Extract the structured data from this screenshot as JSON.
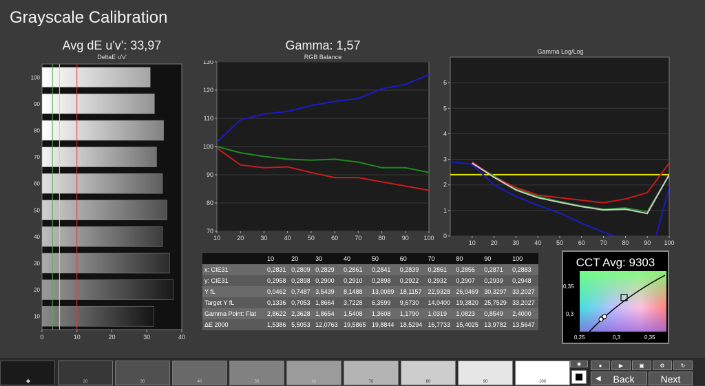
{
  "page_title": "Grayscale Calibration",
  "delta_chart": {
    "heading": "Avg dE u'v': 33,97",
    "subtitle": "DeltaE u'v'",
    "chart_data": {
      "type": "bar",
      "orientation": "horizontal",
      "categories": [
        "10",
        "20",
        "30",
        "40",
        "50",
        "60",
        "70",
        "80",
        "90",
        "100"
      ],
      "values": [
        32.0,
        37.5,
        36.5,
        34.5,
        35.8,
        34.5,
        32.8,
        34.8,
        32.2,
        31.0
      ],
      "xlim": [
        0,
        40
      ],
      "xticks": [
        "0",
        "10",
        "20",
        "30",
        "40"
      ],
      "reference_lines": [
        {
          "x": 3,
          "color": "#4caf50"
        },
        {
          "x": 5,
          "color": "#e6e600"
        },
        {
          "x": 10,
          "color": "#e53935"
        }
      ]
    }
  },
  "rgb_chart": {
    "heading": "Gamma: 1,57",
    "subtitle": "RGB Balance",
    "chart_data": {
      "type": "line",
      "x": [
        10,
        20,
        30,
        40,
        50,
        60,
        70,
        80,
        90,
        100
      ],
      "ylim": [
        70,
        130
      ],
      "yticks": [
        "70",
        "80",
        "90",
        "100",
        "110",
        "120",
        "130"
      ],
      "xticks": [
        "10",
        "20",
        "30",
        "40",
        "50",
        "60",
        "70",
        "80",
        "90",
        "100"
      ],
      "series": [
        {
          "color": "#1a1acc",
          "values": [
            101.5,
            109.5,
            111.5,
            112.5,
            114.5,
            116,
            117,
            120.5,
            122,
            125.5
          ]
        },
        {
          "color": "#1f8a1f",
          "values": [
            100,
            97.8,
            96.5,
            95.5,
            95.2,
            95.5,
            94.5,
            92.5,
            92.5,
            90.8
          ]
        },
        {
          "color": "#cc1a1a",
          "values": [
            99.5,
            93.5,
            92.5,
            92.8,
            90.8,
            89,
            89,
            87.5,
            86,
            84.5
          ]
        }
      ]
    }
  },
  "gamma_chart": {
    "subtitle": "Gamma Log/Log",
    "chart_data": {
      "type": "line",
      "x": [
        0,
        10,
        20,
        30,
        40,
        50,
        60,
        70,
        80,
        90,
        100
      ],
      "xlim": [
        0,
        100
      ],
      "ylim": [
        0,
        7
      ],
      "yticks": [
        "0",
        "1",
        "2",
        "3",
        "4",
        "5",
        "6"
      ],
      "xticks": [
        "10",
        "20",
        "30",
        "40",
        "50",
        "60",
        "70",
        "80",
        "90",
        "100"
      ],
      "series": [
        {
          "color": "#e6e600",
          "x": [
            0,
            100
          ],
          "values": [
            2.4,
            2.4
          ]
        },
        {
          "color": "#1a1acc",
          "x": [
            0,
            10,
            20,
            30,
            40,
            50,
            60,
            70,
            75
          ],
          "values": [
            2.9,
            2.8,
            2.0,
            1.55,
            1.2,
            0.9,
            0.5,
            0.15,
            0
          ]
        },
        {
          "color": "#1a1acc",
          "x": [
            94,
            100
          ],
          "values": [
            0,
            1.9
          ]
        },
        {
          "color": "#1f8a1f",
          "x": [
            10,
            20,
            30,
            40,
            50,
            60,
            70,
            80,
            90,
            100
          ],
          "values": [
            2.85,
            2.35,
            1.85,
            1.55,
            1.35,
            1.18,
            1.05,
            1.1,
            0.95,
            2.4
          ]
        },
        {
          "color": "#cc1a1a",
          "x": [
            10,
            20,
            30,
            40,
            50,
            60,
            70,
            80,
            90,
            100
          ],
          "values": [
            2.9,
            2.3,
            1.9,
            1.6,
            1.5,
            1.4,
            1.3,
            1.45,
            1.7,
            2.85
          ]
        },
        {
          "color": "#cccccc",
          "x": [
            10,
            20,
            30,
            40,
            50,
            60,
            70,
            80,
            90,
            100
          ],
          "values": [
            2.85,
            2.3,
            1.8,
            1.5,
            1.32,
            1.15,
            1.02,
            1.05,
            0.88,
            2.4
          ]
        }
      ]
    }
  },
  "table": {
    "header": [
      "",
      "10",
      "20",
      "30",
      "40",
      "50",
      "60",
      "70",
      "80",
      "90",
      "100"
    ],
    "rows": [
      [
        "x: CIE31",
        "0,2831",
        "0,2809",
        "0,2829",
        "0,2861",
        "0,2841",
        "0,2839",
        "0,2861",
        "0,2856",
        "0,2871",
        "0,2883"
      ],
      [
        "y: CIE31",
        "0,2958",
        "0,2898",
        "0,2900",
        "0,2910",
        "0,2898",
        "0,2922",
        "0,2932",
        "0,2907",
        "0,2939",
        "0,2948"
      ],
      [
        "Y fL",
        "0,0462",
        "0,7487",
        "3,5439",
        "8,1488",
        "13,0089",
        "18,1157",
        "22,9328",
        "26,0469",
        "30,3297",
        "33,2027"
      ],
      [
        "Target Y fL",
        "0,1336",
        "0,7053",
        "1,8664",
        "3,7228",
        "6,3599",
        "9,6730",
        "14,0400",
        "19,3820",
        "25,7529",
        "33,2027"
      ],
      [
        "Gamma Point: Flat",
        "2,8622",
        "2,3628",
        "1,8654",
        "1,5408",
        "1,3608",
        "1,1790",
        "1,0319",
        "1,0823",
        "0,8549",
        "2,4000"
      ],
      [
        "ΔE 2000",
        "1,5386",
        "5,5053",
        "12,0763",
        "19,5865",
        "19,8844",
        "18,5294",
        "16,7733",
        "15,4025",
        "13,9782",
        "13,5647"
      ]
    ]
  },
  "cct": {
    "heading": "CCT Avg: 9303",
    "y_ticks": [
      "0,35",
      "0,3"
    ],
    "x_ticks": [
      "0,25",
      "0,3",
      "0,35"
    ]
  },
  "swatches": [
    "20",
    "30",
    "40",
    "50",
    "60",
    "70",
    "80",
    "90",
    "100"
  ],
  "nav": {
    "back": "Back",
    "next": "Next"
  }
}
